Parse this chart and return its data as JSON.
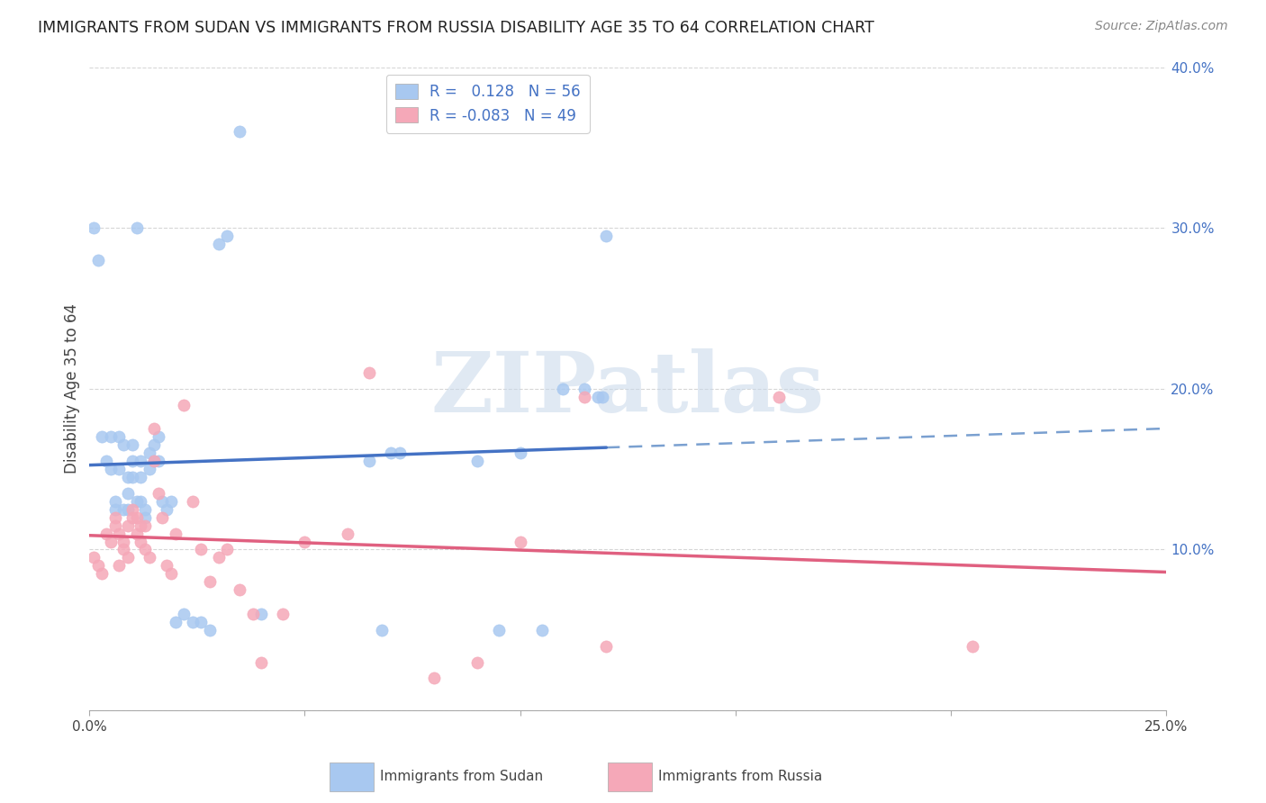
{
  "title": "IMMIGRANTS FROM SUDAN VS IMMIGRANTS FROM RUSSIA DISABILITY AGE 35 TO 64 CORRELATION CHART",
  "source": "Source: ZipAtlas.com",
  "ylabel": "Disability Age 35 to 64",
  "xlim": [
    0.0,
    0.25
  ],
  "ylim": [
    0.0,
    0.4
  ],
  "xticks": [
    0.0,
    0.05,
    0.1,
    0.15,
    0.2,
    0.25
  ],
  "yticks": [
    0.0,
    0.1,
    0.2,
    0.3,
    0.4
  ],
  "sudan_color": "#a8c8f0",
  "russia_color": "#f5a8b8",
  "sudan_line_color": "#4472c4",
  "russia_line_color": "#e06080",
  "dashed_line_color": "#7aa0d0",
  "sudan_R": 0.128,
  "sudan_N": 56,
  "russia_R": -0.083,
  "russia_N": 49,
  "sudan_scatter_x": [
    0.001,
    0.002,
    0.003,
    0.004,
    0.005,
    0.005,
    0.006,
    0.006,
    0.007,
    0.007,
    0.008,
    0.008,
    0.009,
    0.009,
    0.009,
    0.01,
    0.01,
    0.01,
    0.011,
    0.011,
    0.012,
    0.012,
    0.012,
    0.013,
    0.013,
    0.014,
    0.014,
    0.015,
    0.015,
    0.016,
    0.016,
    0.017,
    0.018,
    0.019,
    0.02,
    0.022,
    0.024,
    0.026,
    0.028,
    0.03,
    0.032,
    0.035,
    0.04,
    0.065,
    0.068,
    0.07,
    0.072,
    0.09,
    0.095,
    0.1,
    0.105,
    0.11,
    0.115,
    0.118,
    0.119,
    0.12
  ],
  "sudan_scatter_y": [
    0.3,
    0.28,
    0.17,
    0.155,
    0.15,
    0.17,
    0.13,
    0.125,
    0.17,
    0.15,
    0.125,
    0.165,
    0.145,
    0.135,
    0.125,
    0.165,
    0.155,
    0.145,
    0.3,
    0.13,
    0.155,
    0.145,
    0.13,
    0.125,
    0.12,
    0.16,
    0.15,
    0.165,
    0.155,
    0.155,
    0.17,
    0.13,
    0.125,
    0.13,
    0.055,
    0.06,
    0.055,
    0.055,
    0.05,
    0.29,
    0.295,
    0.36,
    0.06,
    0.155,
    0.05,
    0.16,
    0.16,
    0.155,
    0.05,
    0.16,
    0.05,
    0.2,
    0.2,
    0.195,
    0.195,
    0.295
  ],
  "russia_scatter_x": [
    0.001,
    0.002,
    0.003,
    0.004,
    0.005,
    0.006,
    0.006,
    0.007,
    0.007,
    0.008,
    0.008,
    0.009,
    0.009,
    0.01,
    0.01,
    0.011,
    0.011,
    0.012,
    0.012,
    0.013,
    0.013,
    0.014,
    0.015,
    0.015,
    0.016,
    0.017,
    0.018,
    0.019,
    0.02,
    0.022,
    0.024,
    0.026,
    0.028,
    0.03,
    0.032,
    0.035,
    0.038,
    0.04,
    0.045,
    0.05,
    0.06,
    0.065,
    0.08,
    0.09,
    0.1,
    0.115,
    0.12,
    0.16,
    0.205
  ],
  "russia_scatter_y": [
    0.095,
    0.09,
    0.085,
    0.11,
    0.105,
    0.12,
    0.115,
    0.11,
    0.09,
    0.105,
    0.1,
    0.115,
    0.095,
    0.125,
    0.12,
    0.12,
    0.11,
    0.115,
    0.105,
    0.115,
    0.1,
    0.095,
    0.175,
    0.155,
    0.135,
    0.12,
    0.09,
    0.085,
    0.11,
    0.19,
    0.13,
    0.1,
    0.08,
    0.095,
    0.1,
    0.075,
    0.06,
    0.03,
    0.06,
    0.105,
    0.11,
    0.21,
    0.02,
    0.03,
    0.105,
    0.195,
    0.04,
    0.195,
    0.04
  ],
  "background_color": "#ffffff",
  "grid_color": "#cccccc",
  "watermark_text": "ZIPatlas",
  "watermark_color": "#c8d8ea",
  "legend_sudan_label": "R =   0.128   N = 56",
  "legend_russia_label": "R = -0.083   N = 49",
  "legend_text_color": "#4472c4",
  "bottom_legend_sudan": "Immigrants from Sudan",
  "bottom_legend_russia": "Immigrants from Russia"
}
